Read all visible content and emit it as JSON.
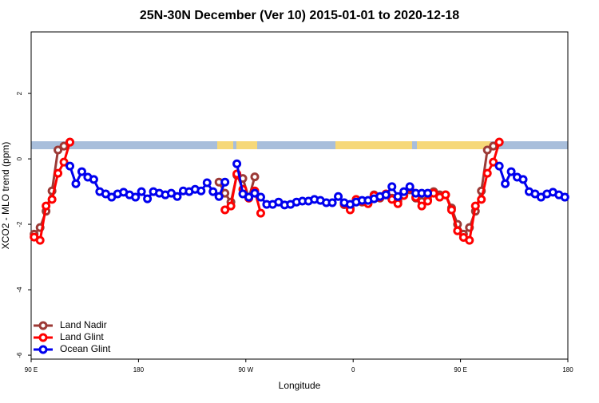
{
  "chart_data": {
    "type": "line",
    "title": "25N-30N December (Ver 10)   2015-01-01 to 2020-12-18",
    "x_label": "Longitude",
    "y_label": "XCO2 - MLO trend (ppm)",
    "xlim": [
      90,
      540
    ],
    "ylim": [
      -6.12,
      3.88
    ],
    "xticks": [
      {
        "value": 90,
        "label": "90 E"
      },
      180,
      {
        "value": 270,
        "label": "90 W"
      },
      {
        "value": 360,
        "label": "0"
      },
      {
        "value": 450,
        "label": "90 E"
      },
      {
        "value": 540,
        "label": "180"
      }
    ],
    "yticks": [
      -6,
      -4,
      -2,
      0,
      2
    ],
    "legend": "bottom-left",
    "x": [
      92.5,
      97.5,
      102.5,
      107.5,
      112.5,
      117.5,
      122.5,
      127.5,
      132.5,
      137.5,
      142.5,
      147.5,
      152.5,
      157.5,
      162.5,
      167.5,
      172.5,
      177.5,
      182.5,
      187.5,
      192.5,
      197.5,
      202.5,
      207.5,
      212.5,
      217.5,
      222.5,
      227.5,
      232.5,
      237.5,
      242.5,
      247.5,
      252.5,
      257.5,
      262.5,
      267.5,
      272.5,
      277.5,
      282.5,
      287.5,
      292.5,
      297.5,
      302.5,
      307.5,
      312.5,
      317.5,
      322.5,
      327.5,
      332.5,
      337.5,
      342.5,
      347.5,
      352.5,
      357.5,
      362.5,
      367.5,
      372.5,
      377.5,
      382.5,
      387.5,
      392.5,
      397.5,
      402.5,
      407.5,
      412.5,
      417.5,
      422.5,
      427.5,
      432.5,
      437.5,
      442.5,
      447.5,
      452.5,
      457.5,
      462.5,
      467.5,
      472.5,
      477.5,
      482.5,
      487.5,
      492.5,
      497.5,
      502.5,
      507.5,
      512.5,
      517.5,
      522.5,
      527.5,
      532.5,
      537.5
    ],
    "series": [
      {
        "name": "Land Nadir",
        "color": "#9c3a36",
        "values": [
          -2.3,
          -2.1,
          -1.6,
          -0.98,
          0.27,
          0.39,
          0.51,
          null,
          null,
          null,
          null,
          null,
          null,
          null,
          null,
          null,
          null,
          null,
          null,
          null,
          null,
          null,
          null,
          null,
          null,
          null,
          null,
          null,
          null,
          null,
          null,
          -0.71,
          -1.05,
          -1.32,
          -0.5,
          -0.6,
          -1.2,
          -0.55,
          null,
          null,
          null,
          null,
          null,
          null,
          null,
          null,
          null,
          null,
          null,
          null,
          null,
          null,
          -1.4,
          -1.5,
          -1.3,
          -1.32,
          -1.35,
          -1.1,
          -1.2,
          -1.1,
          -1.2,
          -1.3,
          -1.1,
          -0.95,
          -1.2,
          -1.3,
          -1.25,
          -1.0,
          -1.1,
          -1.1,
          -1.5,
          -2.0,
          -2.3,
          -2.1,
          -1.6,
          -0.98,
          0.27,
          0.39,
          0.51,
          null,
          null,
          null,
          null,
          null,
          null,
          null,
          null,
          null,
          null,
          null
        ]
      },
      {
        "name": "Land Glint",
        "color": "#ff0000",
        "values": [
          -2.39,
          -2.49,
          -1.44,
          -1.24,
          -0.44,
          -0.1,
          0.51,
          null,
          null,
          null,
          null,
          null,
          null,
          null,
          null,
          null,
          null,
          null,
          null,
          null,
          null,
          null,
          null,
          null,
          null,
          null,
          null,
          null,
          null,
          null,
          null,
          null,
          -1.56,
          -1.44,
          -0.46,
          -0.93,
          -1.2,
          -0.98,
          -1.66,
          null,
          null,
          null,
          null,
          null,
          null,
          null,
          null,
          null,
          null,
          null,
          null,
          null,
          -1.37,
          -1.56,
          -1.24,
          -1.29,
          -1.37,
          -1.12,
          -1.17,
          -1.07,
          -1.24,
          -1.37,
          -1.12,
          -0.9,
          -1.17,
          -1.44,
          -1.29,
          -1.05,
          -1.17,
          -1.1,
          -1.56,
          -2.2,
          -2.4,
          -2.49,
          -1.44,
          -1.24,
          -0.44,
          -0.1,
          0.51,
          null,
          null,
          null,
          null,
          null,
          null,
          null,
          null,
          null,
          null,
          null
        ]
      },
      {
        "name": "Ocean Glint",
        "color": "#0000ee",
        "values": [
          null,
          null,
          null,
          null,
          null,
          null,
          -0.22,
          -0.76,
          -0.39,
          -0.56,
          -0.63,
          -1.0,
          -1.07,
          -1.17,
          -1.07,
          -1.02,
          -1.1,
          -1.17,
          -1.0,
          -1.22,
          -1.0,
          -1.05,
          -1.1,
          -1.05,
          -1.15,
          -0.98,
          -1.0,
          -0.93,
          -0.98,
          -0.73,
          -1.0,
          -1.15,
          -0.71,
          null,
          -0.15,
          -1.07,
          -1.17,
          -1.05,
          -1.17,
          -1.39,
          -1.39,
          -1.32,
          -1.41,
          -1.39,
          -1.32,
          -1.29,
          -1.29,
          -1.24,
          -1.27,
          -1.34,
          -1.34,
          -1.15,
          -1.34,
          -1.39,
          -1.32,
          -1.27,
          -1.27,
          -1.22,
          -1.15,
          -1.1,
          -0.85,
          -1.15,
          -1.0,
          -0.85,
          -1.05,
          -1.05,
          -1.05,
          null,
          null,
          null,
          null,
          null,
          null,
          null,
          null,
          null,
          null,
          null,
          -0.22,
          -0.76,
          -0.39,
          -0.56,
          -0.63,
          -1.0,
          -1.07,
          -1.17,
          -1.07,
          -1.02,
          -1.1,
          -1.17
        ]
      }
    ]
  }
}
